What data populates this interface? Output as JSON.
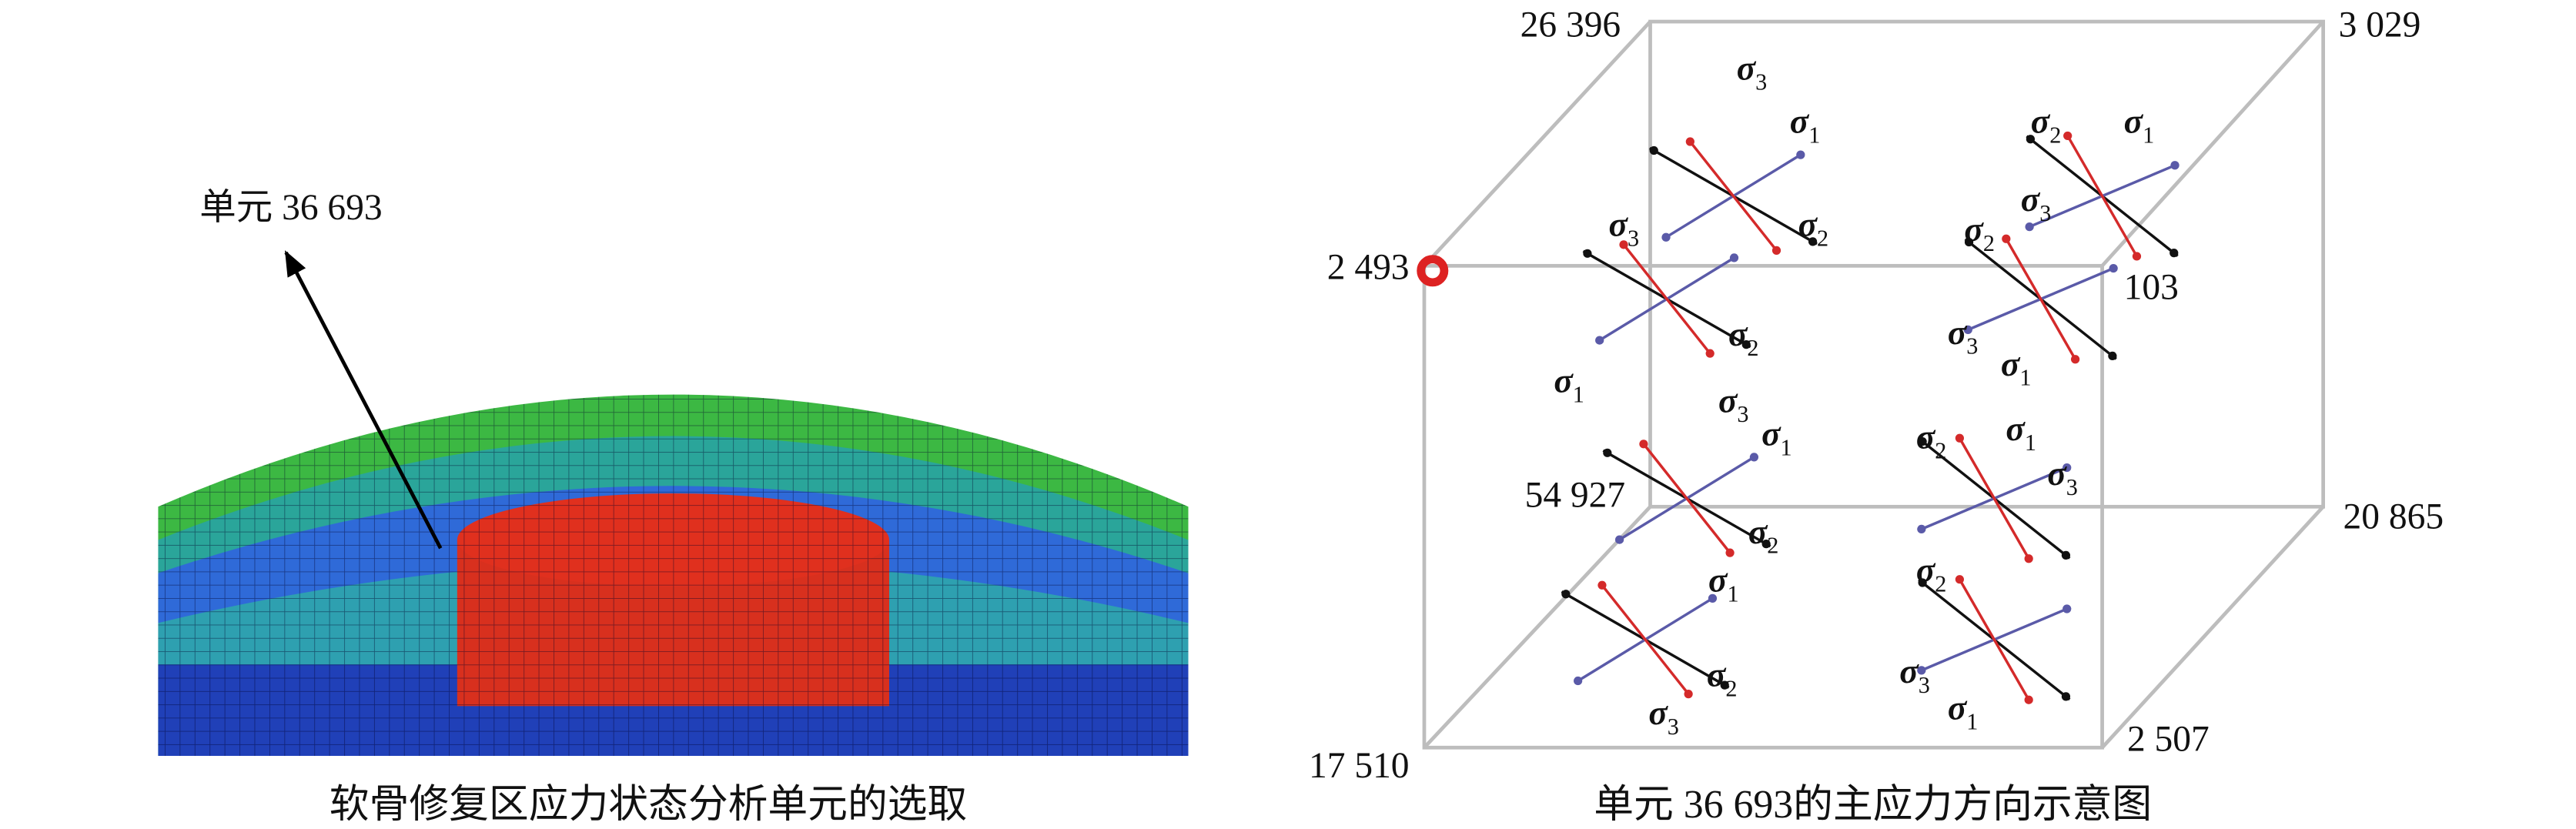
{
  "left": {
    "label": "单元 36 693",
    "caption": "软骨修复区应力状态分析单元的选取"
  },
  "right": {
    "caption": "单元 36 693的主应力方向示意图",
    "corners": [
      "26 396",
      "3 029",
      "2 493",
      "103",
      "54 927",
      "20 865",
      "17 510",
      "2 507"
    ],
    "sigma_labels": [
      {
        "symbol": "σ",
        "index": "3"
      },
      {
        "symbol": "σ",
        "index": "1"
      },
      {
        "symbol": "σ",
        "index": "2"
      },
      {
        "symbol": "σ",
        "index": "3"
      },
      {
        "symbol": "σ",
        "index": "2"
      },
      {
        "symbol": "σ",
        "index": "1"
      },
      {
        "symbol": "σ",
        "index": "3"
      },
      {
        "symbol": "σ",
        "index": "2"
      },
      {
        "symbol": "σ",
        "index": "2"
      },
      {
        "symbol": "σ",
        "index": "1"
      },
      {
        "symbol": "σ",
        "index": "3"
      },
      {
        "symbol": "σ",
        "index": "1"
      },
      {
        "symbol": "σ",
        "index": "3"
      },
      {
        "symbol": "σ",
        "index": "1"
      },
      {
        "symbol": "σ",
        "index": "2"
      },
      {
        "symbol": "σ",
        "index": "2"
      },
      {
        "symbol": "σ",
        "index": "1"
      },
      {
        "symbol": "σ",
        "index": "3"
      },
      {
        "symbol": "σ",
        "index": "2"
      },
      {
        "symbol": "σ",
        "index": "1"
      },
      {
        "symbol": "σ",
        "index": "2"
      },
      {
        "symbol": "σ",
        "index": "3"
      },
      {
        "symbol": "σ",
        "index": "3"
      },
      {
        "symbol": "σ",
        "index": "1"
      }
    ]
  }
}
